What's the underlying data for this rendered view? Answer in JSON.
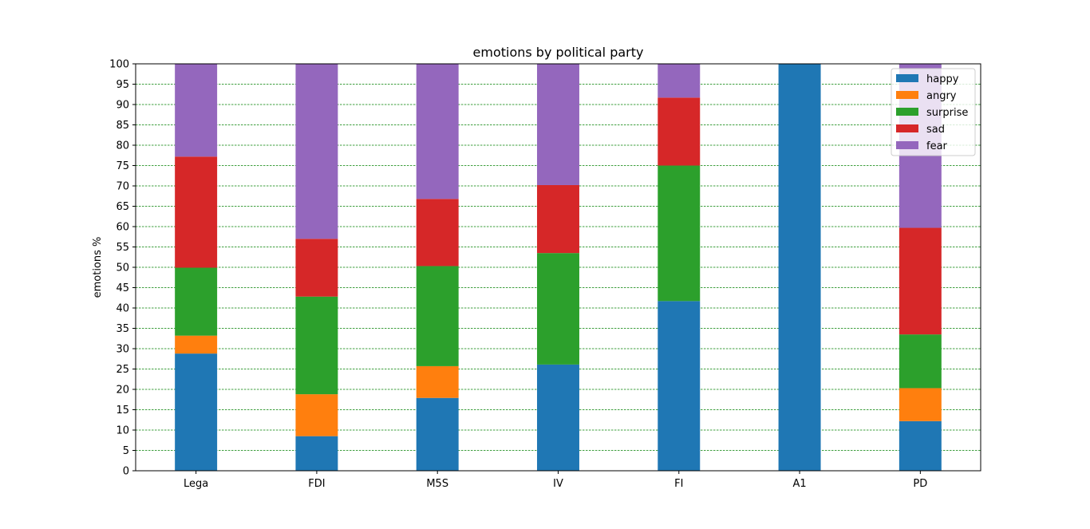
{
  "chart_data": {
    "type": "bar",
    "stacked": true,
    "title": "emotions by political party",
    "xlabel": "",
    "ylabel": "emotions %",
    "ylim": [
      0,
      100
    ],
    "yticks": [
      0,
      5,
      10,
      15,
      20,
      25,
      30,
      35,
      40,
      45,
      50,
      55,
      60,
      65,
      70,
      75,
      80,
      85,
      90,
      95,
      100
    ],
    "grid": "horizontal, green dashed",
    "legend_position": "top-right",
    "categories": [
      "Lega",
      "FDI",
      "M5S",
      "IV",
      "FI",
      "A1",
      "PD"
    ],
    "series": [
      {
        "name": "happy",
        "color": "#1f77b4",
        "values": [
          28.8,
          8.5,
          17.9,
          26.1,
          41.7,
          100,
          12.2
        ]
      },
      {
        "name": "angry",
        "color": "#ff7f0e",
        "values": [
          4.4,
          10.3,
          7.8,
          0,
          0,
          0,
          8.1
        ]
      },
      {
        "name": "surprise",
        "color": "#2ca02c",
        "values": [
          16.7,
          24.0,
          24.6,
          27.4,
          33.3,
          0,
          13.2
        ]
      },
      {
        "name": "sad",
        "color": "#d62728",
        "values": [
          27.3,
          14.2,
          16.5,
          16.7,
          16.7,
          0,
          26.2
        ]
      },
      {
        "name": "fear",
        "color": "#9467bd",
        "values": [
          22.8,
          43.0,
          33.2,
          29.8,
          8.3,
          0,
          40.3
        ]
      }
    ]
  }
}
